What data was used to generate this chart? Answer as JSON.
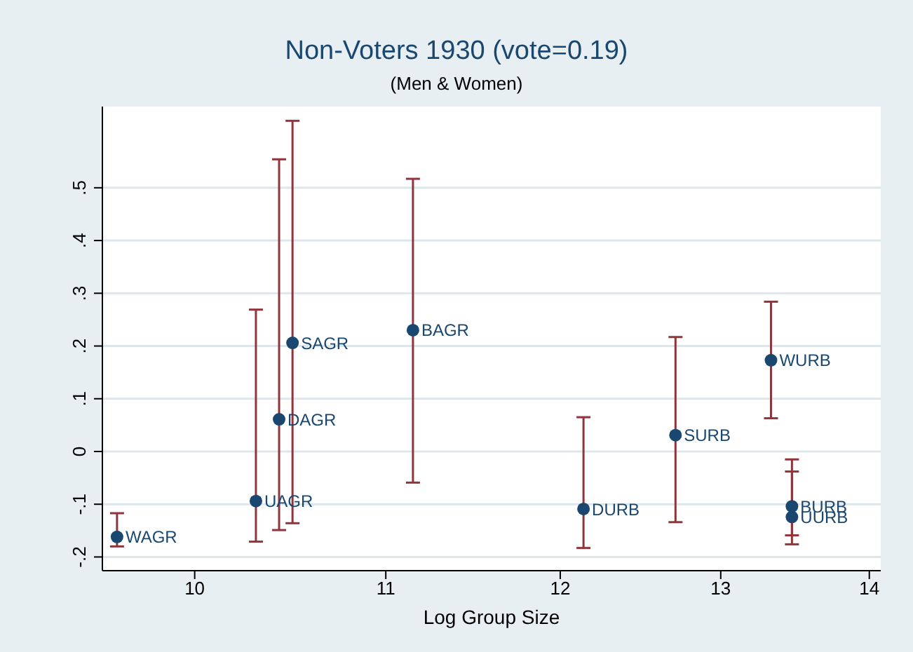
{
  "chart_data": {
    "type": "scatter",
    "title": "Non-Voters 1930 (vote=0.19)",
    "subtitle": "(Men & Women)",
    "xlabel": "Log Group Size",
    "log": "x",
    "x": [
      9.62,
      10.31,
      10.43,
      10.5,
      11.15,
      12.14,
      12.71,
      13.33,
      13.47,
      13.47
    ],
    "series": [
      {
        "color": "#1a476f",
        "values": [
          -0.162,
          -0.094,
          0.061,
          0.206,
          0.23,
          -0.109,
          0.031,
          0.173,
          -0.104,
          -0.124
        ],
        "errors": [
          [
            -0.18,
            -0.117
          ],
          [
            -0.171,
            0.269
          ],
          [
            -0.149,
            0.554
          ],
          [
            -0.136,
            0.627
          ],
          [
            -0.059,
            0.517
          ],
          [
            -0.183,
            0.065
          ],
          [
            -0.134,
            0.217
          ],
          [
            0.063,
            0.284
          ],
          [
            -0.159,
            -0.015
          ],
          [
            -0.176,
            -0.038
          ]
        ]
      }
    ],
    "annotations": [
      {
        "text": "WAGR",
        "x": 9.62,
        "y": -0.162
      },
      {
        "text": "UAGR",
        "x": 10.31,
        "y": -0.094
      },
      {
        "text": "DAGR",
        "x": 10.43,
        "y": 0.061
      },
      {
        "text": "SAGR",
        "x": 10.5,
        "y": 0.206
      },
      {
        "text": "BAGR",
        "x": 11.15,
        "y": 0.23
      },
      {
        "text": "DURB",
        "x": 12.14,
        "y": -0.109
      },
      {
        "text": "SURB",
        "x": 12.71,
        "y": 0.031
      },
      {
        "text": "WURB",
        "x": 13.33,
        "y": 0.173
      },
      {
        "text": "BURB",
        "x": 13.47,
        "y": -0.104
      },
      {
        "text": "UURB",
        "x": 13.47,
        "y": -0.124
      }
    ],
    "xlim": [
      9.55,
      14.08
    ],
    "xticks": [
      10,
      11,
      12,
      13,
      14
    ],
    "ylim": [
      -0.226,
      0.654
    ],
    "yticks": [
      {
        "value": -0.2,
        "label": "-.2"
      },
      {
        "value": -0.1,
        "label": "-.1"
      },
      0,
      {
        "value": 0.1,
        "label": ".1"
      },
      {
        "value": 0.2,
        "label": ".2"
      },
      {
        "value": 0.3,
        "label": ".3"
      },
      {
        "value": 0.4,
        "label": ".4"
      },
      {
        "value": 0.5,
        "label": ".5"
      }
    ],
    "grid": "y",
    "marker": "circle"
  }
}
